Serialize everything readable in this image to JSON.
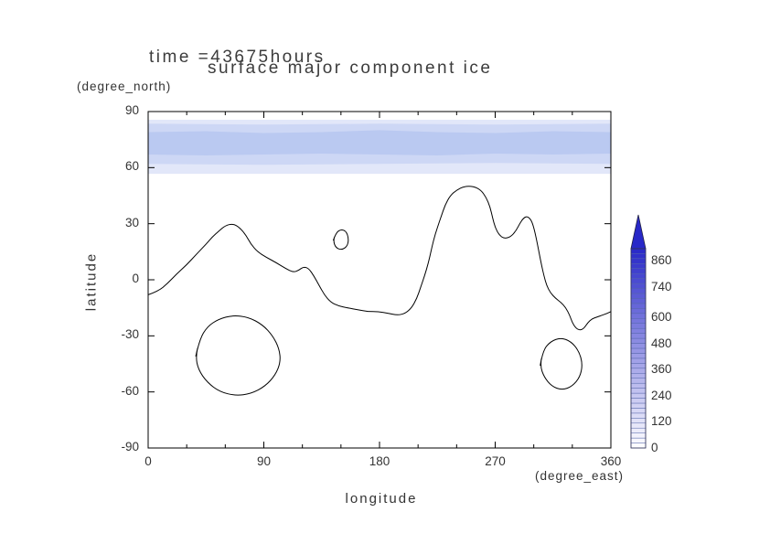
{
  "chart_data": {
    "type": "heatmap",
    "subtype": "filled-contour-map",
    "title": "surface major component ice",
    "time_label": "time =43675hours",
    "xlabel": "longitude",
    "xunit": "(degree_east)",
    "ylabel": "latitude",
    "yunit": "(degree_north)",
    "xlim": [
      0,
      360
    ],
    "ylim": [
      -90,
      90
    ],
    "xticks": [
      0,
      90,
      180,
      270,
      360
    ],
    "yticks": [
      90,
      60,
      30,
      0,
      -30,
      -60,
      -90
    ],
    "grid": false,
    "legend_position": "right-colorbar",
    "colorbar": {
      "ticks": [
        0,
        120,
        240,
        360,
        480,
        600,
        740,
        860
      ],
      "bar_max": 915,
      "segments": 40,
      "min_color": "#ffffff",
      "max_color": "#2828c8",
      "arrow": true
    },
    "ice_bands": [
      {
        "color": "#e2e7f9",
        "top": [
          [
            0,
            85.6
          ],
          [
            360,
            85.6
          ]
        ],
        "bottom": [
          [
            360,
            56.7
          ],
          [
            0,
            56.7
          ]
        ]
      },
      {
        "color": "#cdd7f5",
        "top": [
          [
            0,
            83.5
          ],
          [
            90,
            83
          ],
          [
            180,
            83.5
          ],
          [
            270,
            83
          ],
          [
            360,
            83.5
          ]
        ],
        "bottom": [
          [
            360,
            62
          ],
          [
            270,
            62.5
          ],
          [
            180,
            62
          ],
          [
            90,
            61.5
          ],
          [
            0,
            62
          ]
        ]
      },
      {
        "color": "#bac9f1",
        "top": [
          [
            0,
            79
          ],
          [
            45,
            79.5
          ],
          [
            90,
            78.5
          ],
          [
            135,
            79
          ],
          [
            180,
            80
          ],
          [
            225,
            79
          ],
          [
            270,
            78.5
          ],
          [
            315,
            79.5
          ],
          [
            360,
            79
          ]
        ],
        "bottom": [
          [
            360,
            67.5
          ],
          [
            315,
            67
          ],
          [
            270,
            67.5
          ],
          [
            225,
            66.5
          ],
          [
            180,
            67
          ],
          [
            135,
            67.5
          ],
          [
            90,
            67
          ],
          [
            45,
            66.5
          ],
          [
            0,
            67
          ]
        ]
      }
    ],
    "contours": [
      {
        "name": "main-outline",
        "closed": false,
        "points": [
          [
            0,
            -8
          ],
          [
            8,
            -6
          ],
          [
            15,
            -2
          ],
          [
            22,
            3
          ],
          [
            30,
            8
          ],
          [
            38,
            14
          ],
          [
            45,
            19
          ],
          [
            50,
            23
          ],
          [
            55,
            26
          ],
          [
            60,
            29
          ],
          [
            66,
            30
          ],
          [
            71,
            28
          ],
          [
            76,
            24
          ],
          [
            80,
            19
          ],
          [
            85,
            15
          ],
          [
            92,
            12
          ],
          [
            100,
            9
          ],
          [
            107,
            6
          ],
          [
            113,
            4
          ],
          [
            117,
            5
          ],
          [
            121,
            7
          ],
          [
            125,
            6
          ],
          [
            129,
            2
          ],
          [
            133,
            -3
          ],
          [
            137,
            -8
          ],
          [
            142,
            -12
          ],
          [
            148,
            -14
          ],
          [
            155,
            -15
          ],
          [
            163,
            -16
          ],
          [
            171,
            -17
          ],
          [
            179,
            -17
          ],
          [
            187,
            -18
          ],
          [
            194,
            -19
          ],
          [
            200,
            -18
          ],
          [
            205,
            -15
          ],
          [
            209,
            -10
          ],
          [
            212,
            -4
          ],
          [
            215,
            2
          ],
          [
            218,
            9
          ],
          [
            220,
            15
          ],
          [
            222,
            21
          ],
          [
            225,
            28
          ],
          [
            228,
            34
          ],
          [
            231,
            40
          ],
          [
            235,
            45
          ],
          [
            240,
            48
          ],
          [
            246,
            50
          ],
          [
            253,
            50
          ],
          [
            259,
            48
          ],
          [
            263,
            44
          ],
          [
            266,
            39
          ],
          [
            268,
            33
          ],
          [
            270,
            28
          ],
          [
            273,
            24
          ],
          [
            277,
            22
          ],
          [
            282,
            23
          ],
          [
            286,
            26
          ],
          [
            289,
            30
          ],
          [
            292,
            33
          ],
          [
            295,
            34
          ],
          [
            298,
            32
          ],
          [
            300,
            28
          ],
          [
            302,
            22
          ],
          [
            304,
            15
          ],
          [
            306,
            8
          ],
          [
            308,
            2
          ],
          [
            310,
            -3
          ],
          [
            313,
            -7
          ],
          [
            317,
            -10
          ],
          [
            321,
            -12
          ],
          [
            325,
            -15
          ],
          [
            328,
            -19
          ],
          [
            330,
            -23
          ],
          [
            333,
            -26
          ],
          [
            336,
            -27
          ],
          [
            339,
            -26
          ],
          [
            342,
            -23
          ],
          [
            345,
            -21
          ],
          [
            349,
            -20
          ],
          [
            353,
            -19
          ],
          [
            357,
            -18
          ],
          [
            360,
            -17
          ]
        ]
      },
      {
        "name": "small-island",
        "closed": true,
        "points": [
          [
            144,
            21
          ],
          [
            146,
            25
          ],
          [
            150,
            27
          ],
          [
            154,
            26
          ],
          [
            156,
            22
          ],
          [
            155,
            18
          ],
          [
            151,
            16
          ],
          [
            146,
            17
          ]
        ]
      },
      {
        "name": "large-south-oval",
        "closed": true,
        "points": [
          [
            37,
            -41
          ],
          [
            40,
            -32
          ],
          [
            46,
            -25
          ],
          [
            55,
            -21
          ],
          [
            66,
            -19
          ],
          [
            78,
            -20
          ],
          [
            89,
            -24
          ],
          [
            97,
            -30
          ],
          [
            102,
            -37
          ],
          [
            103,
            -44
          ],
          [
            99,
            -51
          ],
          [
            91,
            -57
          ],
          [
            80,
            -61
          ],
          [
            68,
            -62
          ],
          [
            56,
            -60
          ],
          [
            46,
            -55
          ],
          [
            39,
            -48
          ]
        ]
      },
      {
        "name": "small-south-oval",
        "closed": true,
        "points": [
          [
            305,
            -46
          ],
          [
            307,
            -38
          ],
          [
            313,
            -33
          ],
          [
            321,
            -31
          ],
          [
            329,
            -33
          ],
          [
            335,
            -38
          ],
          [
            338,
            -45
          ],
          [
            336,
            -52
          ],
          [
            330,
            -57
          ],
          [
            322,
            -59
          ],
          [
            314,
            -57
          ],
          [
            308,
            -52
          ]
        ]
      }
    ]
  }
}
